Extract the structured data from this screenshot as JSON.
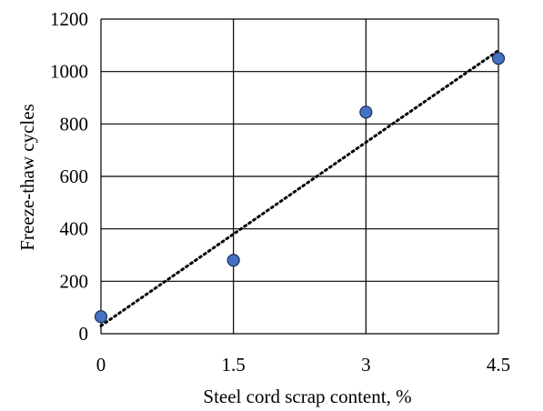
{
  "chart_data": {
    "type": "scatter",
    "title": "",
    "xlabel": "Steel cord scrap content, %",
    "ylabel": "Freeze-thaw cycles",
    "x_ticks": [
      "0",
      "1.5",
      "3",
      "4.5"
    ],
    "y_ticks": [
      "0",
      "200",
      "400",
      "600",
      "800",
      "1000",
      "1200"
    ],
    "xlim": [
      0,
      4.5
    ],
    "ylim": [
      0,
      1200
    ],
    "grid": true,
    "legend": "none",
    "series": [
      {
        "x": [
          0,
          1.5,
          3,
          4.5
        ],
        "y": [
          65,
          280,
          845,
          1050
        ],
        "marker_color": "#4472c4"
      }
    ],
    "trendline": {
      "style": "dotted",
      "type": "linear",
      "color": "#000000",
      "x": [
        0,
        4.5
      ],
      "y": [
        30,
        1080
      ]
    }
  }
}
